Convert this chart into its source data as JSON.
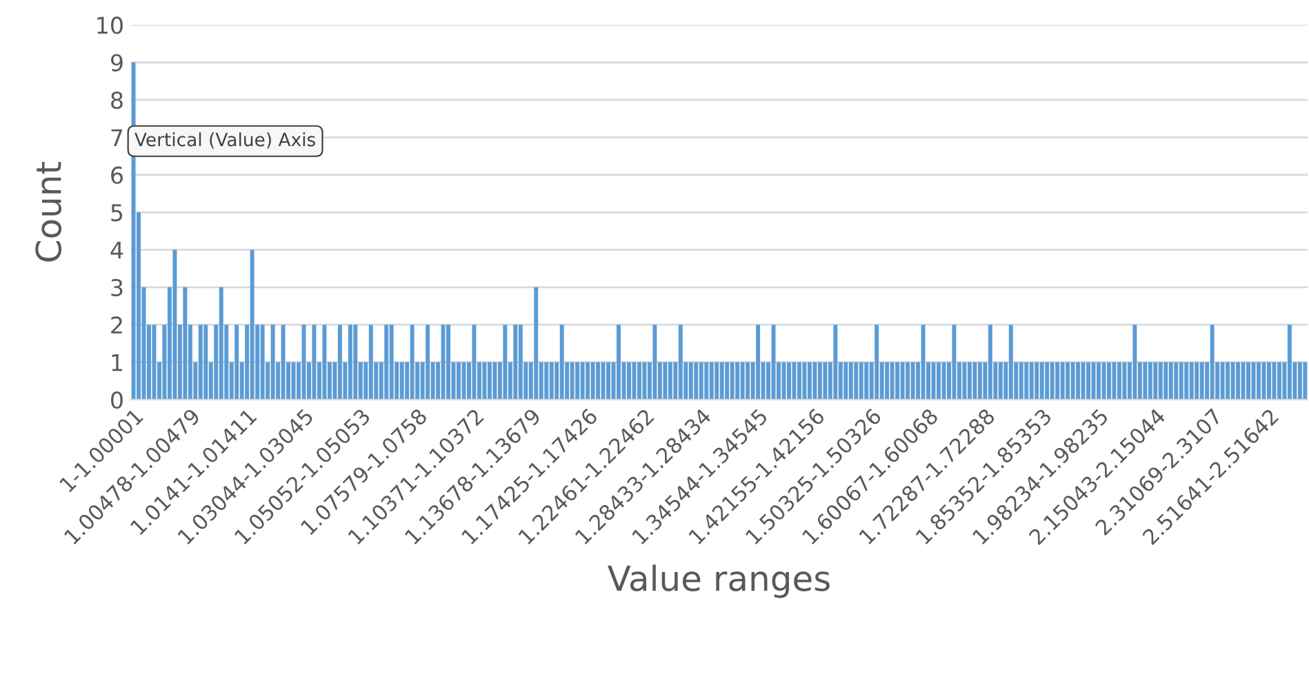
{
  "chart_data": {
    "type": "bar",
    "xlabel": "Value ranges",
    "ylabel": "Count",
    "color": "#5b9bd5",
    "ylim": [
      0,
      10
    ],
    "yticks": [
      0,
      1,
      2,
      3,
      4,
      5,
      6,
      7,
      8,
      9,
      10
    ],
    "grid": "y",
    "legend": false,
    "annotations": [
      "Vertical (Value) Axis"
    ],
    "categories": [
      "1-1.00001",
      null,
      null,
      null,
      null,
      null,
      null,
      null,
      null,
      null,
      null,
      "1.00478-1.00479",
      null,
      null,
      null,
      null,
      null,
      null,
      null,
      null,
      null,
      null,
      "1.0141-1.01411",
      null,
      null,
      null,
      null,
      null,
      null,
      null,
      null,
      null,
      null,
      "1.03044-1.03045",
      null,
      null,
      null,
      null,
      null,
      null,
      null,
      null,
      null,
      null,
      "1.05052-1.05053",
      null,
      null,
      null,
      null,
      null,
      null,
      null,
      null,
      null,
      null,
      "1.07579-1.0758",
      null,
      null,
      null,
      null,
      null,
      null,
      null,
      null,
      null,
      null,
      "1.10371-1.10372",
      null,
      null,
      null,
      null,
      null,
      null,
      null,
      null,
      null,
      null,
      "1.13678-1.13679",
      null,
      null,
      null,
      null,
      null,
      null,
      null,
      null,
      null,
      null,
      "1.17425-1.17426",
      null,
      null,
      null,
      null,
      null,
      null,
      null,
      null,
      null,
      null,
      "1.22461-1.22462",
      null,
      null,
      null,
      null,
      null,
      null,
      null,
      null,
      null,
      null,
      "1.28433-1.28434",
      null,
      null,
      null,
      null,
      null,
      null,
      null,
      null,
      null,
      null,
      "1.34544-1.34545",
      null,
      null,
      null,
      null,
      null,
      null,
      null,
      null,
      null,
      null,
      "1.42155-1.42156",
      null,
      null,
      null,
      null,
      null,
      null,
      null,
      null,
      null,
      null,
      "1.50325-1.50326",
      null,
      null,
      null,
      null,
      null,
      null,
      null,
      null,
      null,
      null,
      "1.60067-1.60068",
      null,
      null,
      null,
      null,
      null,
      null,
      null,
      null,
      null,
      null,
      "1.72287-1.72288",
      null,
      null,
      null,
      null,
      null,
      null,
      null,
      null,
      null,
      null,
      "1.85352-1.85353",
      null,
      null,
      null,
      null,
      null,
      null,
      null,
      null,
      null,
      null,
      "1.98234-1.98235",
      null,
      null,
      null,
      null,
      null,
      null,
      null,
      null,
      null,
      null,
      "2.15043-2.15044",
      null,
      null,
      null,
      null,
      null,
      null,
      null,
      null,
      null,
      null,
      "2.31069-2.3107",
      null,
      null,
      null,
      null,
      null,
      null,
      null,
      null,
      null,
      null,
      "2.51641-2.51642",
      null,
      null,
      null,
      null,
      null,
      null,
      null
    ],
    "values": [
      9,
      5,
      3,
      2,
      2,
      1,
      2,
      3,
      4,
      2,
      3,
      2,
      1,
      2,
      2,
      1,
      2,
      3,
      2,
      1,
      2,
      1,
      2,
      4,
      2,
      2,
      1,
      2,
      1,
      2,
      1,
      1,
      1,
      2,
      1,
      2,
      1,
      2,
      1,
      1,
      2,
      1,
      2,
      2,
      1,
      1,
      2,
      1,
      1,
      2,
      2,
      1,
      1,
      1,
      2,
      1,
      1,
      2,
      1,
      1,
      2,
      2,
      1,
      1,
      1,
      1,
      2,
      1,
      1,
      1,
      1,
      1,
      2,
      1,
      2,
      2,
      1,
      1,
      3,
      1,
      1,
      1,
      1,
      2,
      1,
      1,
      1,
      1,
      1,
      1,
      1,
      1,
      1,
      1,
      2,
      1,
      1,
      1,
      1,
      1,
      1,
      2,
      1,
      1,
      1,
      1,
      2,
      1,
      1,
      1,
      1,
      1,
      1,
      1,
      1,
      1,
      1,
      1,
      1,
      1,
      1,
      2,
      1,
      1,
      2,
      1,
      1,
      1,
      1,
      1,
      1,
      1,
      1,
      1,
      1,
      1,
      2,
      1,
      1,
      1,
      1,
      1,
      1,
      1,
      2,
      1,
      1,
      1,
      1,
      1,
      1,
      1,
      1,
      2,
      1,
      1,
      1,
      1,
      1,
      2,
      1,
      1,
      1,
      1,
      1,
      1,
      2,
      1,
      1,
      1,
      2,
      1,
      1,
      1,
      1,
      1,
      1,
      1,
      1,
      1,
      1,
      1,
      1,
      1,
      1,
      1,
      1,
      1,
      1,
      1,
      1,
      1,
      1,
      1,
      2,
      1,
      1,
      1,
      1,
      1,
      1,
      1,
      1,
      1,
      1,
      1,
      1,
      1,
      1,
      2,
      1,
      1,
      1,
      1,
      1,
      1,
      1,
      1,
      1,
      1,
      1,
      1,
      1,
      1,
      2,
      1,
      1,
      1
    ]
  }
}
